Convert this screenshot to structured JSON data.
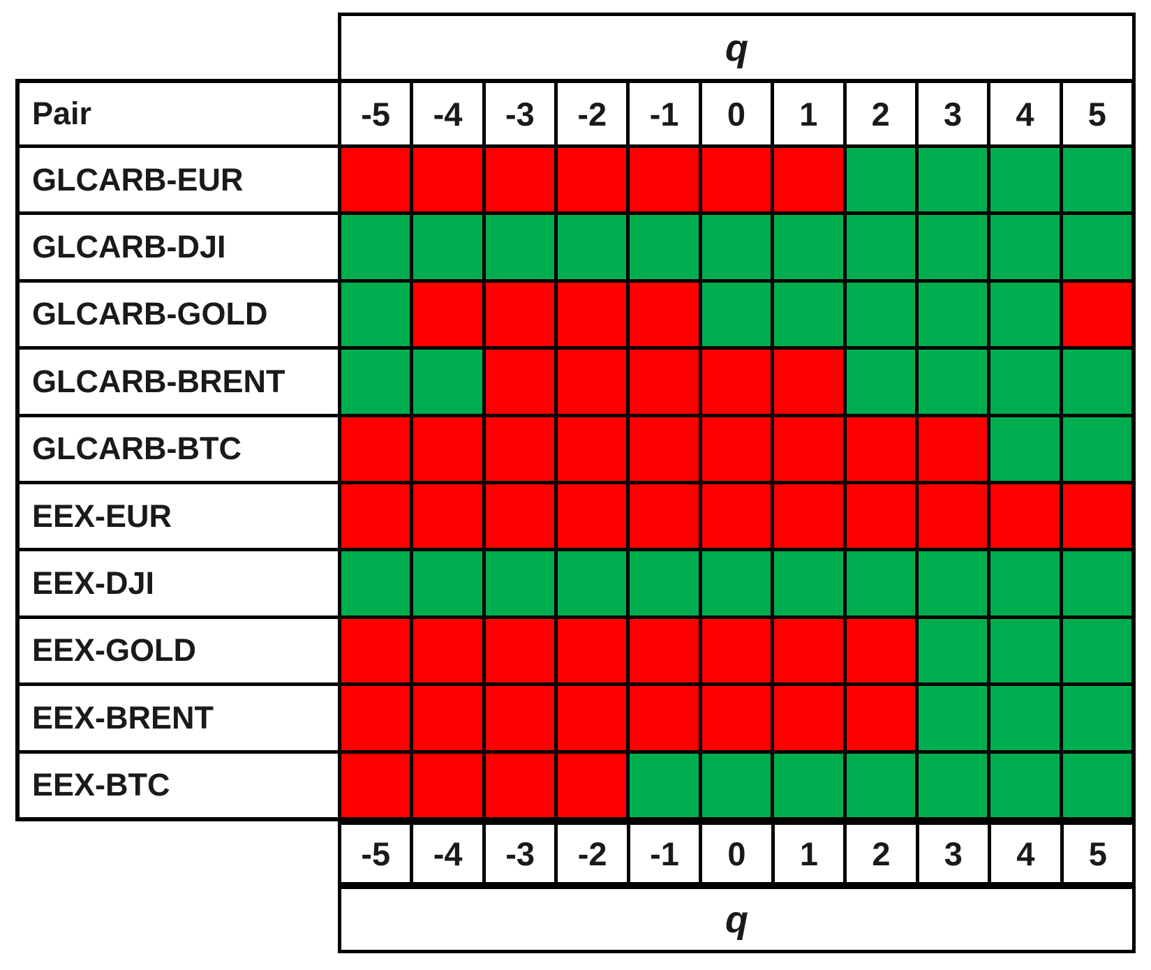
{
  "colors": {
    "positive_green": "#00AE50",
    "negative_red": "#FE0000",
    "grid_line": "#000000",
    "background": "#FFFFFF"
  },
  "axis": {
    "top_label": "q",
    "bottom_label": "q"
  },
  "chart_data": {
    "type": "heatmap",
    "title": "",
    "row_header": "Pair",
    "column_axis_label": "q",
    "columns": [
      "-5",
      "-4",
      "-3",
      "-2",
      "-1",
      "0",
      "1",
      "2",
      "3",
      "4",
      "5"
    ],
    "cell_encoding": {
      "G": "green (positive/significant)",
      "R": "red (negative/not significant)"
    },
    "rows": [
      {
        "pair": "GLCARB-EUR",
        "cells": [
          "R",
          "R",
          "R",
          "R",
          "R",
          "R",
          "R",
          "G",
          "G",
          "G",
          "G"
        ]
      },
      {
        "pair": "GLCARB-DJI",
        "cells": [
          "G",
          "G",
          "G",
          "G",
          "G",
          "G",
          "G",
          "G",
          "G",
          "G",
          "G"
        ]
      },
      {
        "pair": "GLCARB-GOLD",
        "cells": [
          "G",
          "R",
          "R",
          "R",
          "R",
          "G",
          "G",
          "G",
          "G",
          "G",
          "R"
        ]
      },
      {
        "pair": "GLCARB-BRENT",
        "cells": [
          "G",
          "G",
          "R",
          "R",
          "R",
          "R",
          "R",
          "G",
          "G",
          "G",
          "G"
        ]
      },
      {
        "pair": "GLCARB-BTC",
        "cells": [
          "R",
          "R",
          "R",
          "R",
          "R",
          "R",
          "R",
          "R",
          "R",
          "G",
          "G"
        ]
      },
      {
        "pair": "EEX-EUR",
        "cells": [
          "R",
          "R",
          "R",
          "R",
          "R",
          "R",
          "R",
          "R",
          "R",
          "R",
          "R"
        ]
      },
      {
        "pair": "EEX-DJI",
        "cells": [
          "G",
          "G",
          "G",
          "G",
          "G",
          "G",
          "G",
          "G",
          "G",
          "G",
          "G"
        ]
      },
      {
        "pair": "EEX-GOLD",
        "cells": [
          "R",
          "R",
          "R",
          "R",
          "R",
          "R",
          "R",
          "R",
          "G",
          "G",
          "G"
        ]
      },
      {
        "pair": "EEX-BRENT",
        "cells": [
          "R",
          "R",
          "R",
          "R",
          "R",
          "R",
          "R",
          "R",
          "G",
          "G",
          "G"
        ]
      },
      {
        "pair": "EEX-BTC",
        "cells": [
          "R",
          "R",
          "R",
          "R",
          "G",
          "G",
          "G",
          "G",
          "G",
          "G",
          "G"
        ]
      }
    ]
  }
}
